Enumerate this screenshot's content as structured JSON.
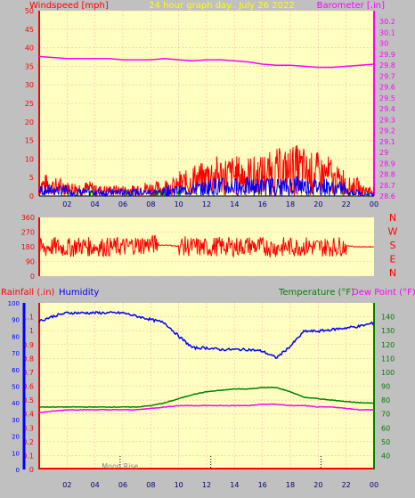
{
  "header": {
    "left": "Windspeed [mph]",
    "center": "24 hour graph day.. July 26 2022",
    "right": "Barometer [.in]"
  },
  "colors": {
    "panel_bg": "#ffffc0",
    "frame_bg": "#c0c0c0",
    "wind": "#ff0000",
    "gust": "#ff0000",
    "avg_wind": "#0000ff",
    "calm": "#008000",
    "barometer": "#ff00ff",
    "humidity": "#0000ff",
    "temperature": "#008000",
    "dewpoint": "#ff00ff",
    "rain": "#ff0000",
    "marker": "#808080"
  },
  "direction_labels": [
    "N",
    "W",
    "S",
    "E",
    "N"
  ],
  "lower_header": {
    "rain": "Rainfall (.in)",
    "humidity": "Humidity",
    "temperature": "Temperature (°F)",
    "dewpoint": "Dew Point (°F)"
  },
  "annotation": "Moon Rise",
  "chart_data": [
    {
      "type": "line",
      "title": "24 hour graph day.. July 26 2022",
      "x_ticks": [
        "02",
        "04",
        "06",
        "08",
        "10",
        "12",
        "14",
        "16",
        "18",
        "20",
        "22",
        "00"
      ],
      "x_range_hours": [
        0,
        24
      ],
      "left_axis": {
        "label": "Windspeed [mph]",
        "range": [
          0,
          50
        ],
        "ticks": [
          "0",
          "5",
          "10",
          "15",
          "20",
          "25",
          "30",
          "35",
          "40",
          "45",
          "50"
        ]
      },
      "right_axis": {
        "label": "Barometer [.in]",
        "range": [
          28.6,
          30.3
        ],
        "ticks": [
          "28.6",
          "28.7",
          "28.8",
          "28.9",
          "29",
          "29.1",
          "29.2",
          "29.3",
          "29.4",
          "29.5",
          "29.6",
          "29.7",
          "29.8",
          "29.9",
          "30",
          "30.1",
          "30.2"
        ]
      },
      "series": [
        {
          "name": "Barometer [.in]",
          "axis": "right",
          "x": [
            0,
            1,
            2,
            3,
            4,
            5,
            6,
            7,
            8,
            9,
            10,
            11,
            12,
            13,
            14,
            15,
            16,
            17,
            18,
            19,
            20,
            21,
            22,
            23,
            24
          ],
          "values": [
            29.88,
            29.87,
            29.86,
            29.86,
            29.86,
            29.86,
            29.85,
            29.85,
            29.85,
            29.86,
            29.85,
            29.84,
            29.85,
            29.85,
            29.84,
            29.83,
            29.81,
            29.8,
            29.8,
            29.79,
            29.78,
            29.78,
            29.79,
            29.8,
            29.81
          ]
        }
      ],
      "wind_gust_max_by_hour": [
        6,
        5,
        4,
        4,
        3,
        3,
        3,
        4,
        4,
        5,
        7,
        9,
        11,
        11,
        11,
        11,
        12,
        13,
        14,
        12,
        11,
        8,
        5,
        3
      ],
      "wind_avg_max_by_hour": [
        3,
        3,
        2,
        2,
        2,
        2,
        2,
        2,
        2,
        3,
        3,
        4,
        5,
        5,
        5,
        5,
        5,
        5,
        6,
        5,
        5,
        4,
        2,
        1
      ]
    },
    {
      "type": "scatter",
      "title": "Wind direction",
      "left_axis": {
        "label": "",
        "range": [
          0,
          360
        ],
        "ticks": [
          "0",
          "90",
          "180",
          "270",
          "360"
        ]
      },
      "right_labels": [
        "N",
        "W",
        "S",
        "E",
        "N"
      ],
      "series": [
        {
          "name": "Wind direction",
          "x": [
            0,
            1,
            2,
            3,
            4,
            5,
            6,
            7,
            8,
            9,
            10,
            11,
            12,
            13,
            14,
            15,
            16,
            17,
            18,
            19,
            20,
            21,
            22,
            23,
            24
          ],
          "values": [
            170,
            180,
            175,
            185,
            180,
            178,
            180,
            190,
            195,
            190,
            185,
            180,
            175,
            182,
            180,
            185,
            180,
            175,
            180,
            182,
            178,
            180,
            185,
            180,
            180
          ]
        }
      ]
    },
    {
      "type": "line",
      "title": "",
      "x_ticks": [
        "02",
        "04",
        "06",
        "08",
        "10",
        "12",
        "14",
        "16",
        "18",
        "20",
        "22",
        "00"
      ],
      "x_range_hours": [
        0,
        24
      ],
      "left_axis_rain": {
        "label": "Rainfall (.in)",
        "range": [
          0,
          1.2
        ],
        "ticks": [
          "0",
          "0.1",
          "0.2",
          "0.3",
          "0.4",
          "0.5",
          "0.6",
          "0.7",
          "0.8",
          "0.9",
          "1",
          "1.1"
        ]
      },
      "left_axis_humidity": {
        "label": "Humidity",
        "range": [
          0,
          100
        ],
        "ticks": [
          "0",
          "10",
          "20",
          "30",
          "40",
          "50",
          "60",
          "70",
          "80",
          "90",
          "100"
        ]
      },
      "right_axis": {
        "label": "Temperature (°F)",
        "range": [
          30,
          150
        ],
        "ticks": [
          "40",
          "50",
          "60",
          "70",
          "80",
          "90",
          "100",
          "110",
          "120",
          "130",
          "140"
        ]
      },
      "series": [
        {
          "name": "Humidity",
          "axis": "humidity",
          "x": [
            0,
            1,
            2,
            3,
            4,
            5,
            6,
            7,
            8,
            9,
            10,
            11,
            12,
            13,
            14,
            15,
            16,
            17,
            18,
            19,
            20,
            21,
            22,
            23,
            24
          ],
          "values": [
            89,
            92,
            94,
            94,
            94,
            94,
            94,
            92,
            90,
            88,
            80,
            73,
            73,
            72,
            72,
            72,
            71,
            67,
            74,
            83,
            83,
            84,
            85,
            86,
            88
          ]
        },
        {
          "name": "Temperature (°F)",
          "axis": "right",
          "x": [
            0,
            1,
            2,
            3,
            4,
            5,
            6,
            7,
            8,
            9,
            10,
            11,
            12,
            13,
            14,
            15,
            16,
            17,
            18,
            19,
            20,
            21,
            22,
            23,
            24
          ],
          "values": [
            75,
            75,
            75,
            75,
            75,
            75,
            75,
            75,
            76,
            78,
            81,
            84,
            86,
            87,
            88,
            88,
            89,
            89,
            86,
            82,
            81,
            80,
            79,
            78,
            78
          ]
        },
        {
          "name": "Dew Point (°F)",
          "axis": "right",
          "x": [
            0,
            1,
            2,
            3,
            4,
            5,
            6,
            7,
            8,
            9,
            10,
            11,
            12,
            13,
            14,
            15,
            16,
            17,
            18,
            19,
            20,
            21,
            22,
            23,
            24
          ],
          "values": [
            71,
            72,
            73,
            73,
            73,
            73,
            73,
            73,
            74,
            75,
            76,
            76,
            76,
            76,
            76,
            76,
            77,
            77,
            76,
            76,
            75,
            75,
            74,
            73,
            73
          ]
        },
        {
          "name": "Rainfall (.in)",
          "axis": "rain",
          "x": [
            0,
            24
          ],
          "values": [
            0,
            0
          ]
        }
      ],
      "markers_hours": [
        5.8,
        12.3,
        20.2
      ]
    }
  ]
}
